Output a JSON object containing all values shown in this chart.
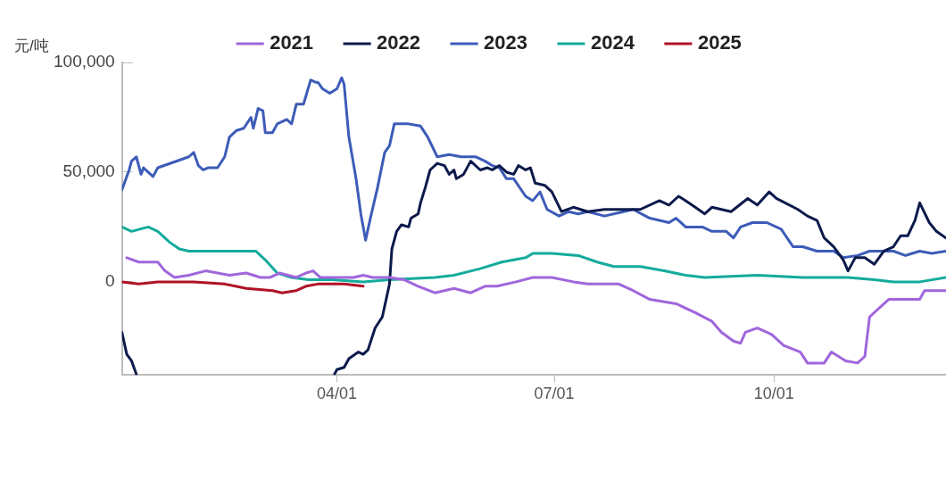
{
  "chart_data": {
    "type": "line",
    "ylabel": "元/吨",
    "legend": "top",
    "grid": false,
    "marker": "none",
    "line_style": "solid",
    "xlim": [
      "--01-01",
      "--12-12"
    ],
    "xticks": [
      {
        "value": "--04-01",
        "label": "04/01"
      },
      {
        "value": "--07-01",
        "label": "07/01"
      },
      {
        "value": "--10-01",
        "label": "10/01"
      }
    ],
    "ylim": [
      -42500,
      100000
    ],
    "yticks": [
      {
        "value": 0,
        "label": "0"
      },
      {
        "value": 50000,
        "label": "50,000"
      },
      {
        "value": 100000,
        "label": "100,000"
      }
    ],
    "series": [
      {
        "name": "2021",
        "color": "#a066dc",
        "x": [
          "--01-03",
          "--01-08",
          "--01-16",
          "--01-19",
          "--01-23",
          "--01-29",
          "--02-05",
          "--02-15",
          "--02-22",
          "--02-28",
          "--03-04",
          "--03-08",
          "--03-15",
          "--03-19",
          "--03-22",
          "--03-25",
          "--04-01",
          "--04-08",
          "--04-12",
          "--04-16",
          "--04-23",
          "--04-29",
          "--05-05",
          "--05-12",
          "--05-20",
          "--05-27",
          "--06-02",
          "--06-07",
          "--06-15",
          "--06-22",
          "--06-30",
          "--07-09",
          "--07-15",
          "--07-28",
          "--08-03",
          "--08-10",
          "--08-21",
          "--08-29",
          "--09-05",
          "--09-09",
          "--09-14",
          "--09-17",
          "--09-19",
          "--09-24",
          "--09-30",
          "--10-05",
          "--10-12",
          "--10-15",
          "--10-22",
          "--10-25",
          "--10-31",
          "--11-05",
          "--11-08",
          "--11-10",
          "--11-14",
          "--11-18",
          "--12-01",
          "--12-03",
          "--12-12"
        ],
        "values": [
          11000,
          9000,
          9000,
          5000,
          2000,
          3000,
          5000,
          3000,
          4000,
          2000,
          2000,
          4000,
          2000,
          4000,
          5000,
          2000,
          2000,
          2000,
          3000,
          2000,
          2000,
          1000,
          -2000,
          -5000,
          -3000,
          -5000,
          -2000,
          -2000,
          0,
          2000,
          2000,
          0,
          -1000,
          -1000,
          -4000,
          -8000,
          -10000,
          -14000,
          -18000,
          -23000,
          -27000,
          -28000,
          -23000,
          -21000,
          -24000,
          -29000,
          -32000,
          -37000,
          -37000,
          -32000,
          -36000,
          -37000,
          -34000,
          -16000,
          -12000,
          -8000,
          -8000,
          -4000,
          -4000
        ]
      },
      {
        "name": "2022",
        "color": "#0c1a4b",
        "x": [
          "--01-01",
          "--01-03",
          "--01-05",
          "--01-07",
          "--02-20",
          "--03-31",
          "--04-01",
          "--04-04",
          "--04-06",
          "--04-10",
          "--04-12",
          "--04-14",
          "--04-17",
          "--04-20",
          "--04-23",
          "--04-24",
          "--04-26",
          "--04-28",
          "--05-01",
          "--05-02",
          "--05-05",
          "--05-06",
          "--05-08",
          "--05-10",
          "--05-13",
          "--05-16",
          "--05-18",
          "--05-20",
          "--05-21",
          "--05-24",
          "--05-27",
          "--05-31",
          "--06-03",
          "--06-05",
          "--06-08",
          "--06-11",
          "--06-14",
          "--06-16",
          "--06-19",
          "--06-21",
          "--06-23",
          "--06-27",
          "--06-30",
          "--07-04",
          "--07-09",
          "--07-15",
          "--07-22",
          "--07-30",
          "--08-06",
          "--08-14",
          "--08-18",
          "--08-22",
          "--08-25",
          "--08-29",
          "--09-02",
          "--09-05",
          "--09-13",
          "--09-20",
          "--09-24",
          "--09-29",
          "--10-02",
          "--10-11",
          "--10-15",
          "--10-19",
          "--10-22",
          "--10-26",
          "--10-30",
          "--11-01",
          "--11-04",
          "--11-08",
          "--11-12",
          "--11-16",
          "--11-20",
          "--11-23",
          "--11-26",
          "--11-29",
          "--12-01",
          "--12-05",
          "--12-08",
          "--12-12"
        ],
        "values": [
          -23000,
          -33000,
          -36000,
          -42000,
          null,
          -42000,
          -40000,
          -39000,
          -35000,
          -32000,
          -33000,
          -31000,
          -21000,
          -16000,
          -1000,
          15000,
          23000,
          26000,
          25000,
          29000,
          31000,
          36000,
          43000,
          51000,
          54000,
          53000,
          49000,
          51000,
          47000,
          49000,
          55000,
          51000,
          52000,
          51000,
          53000,
          50000,
          49000,
          53000,
          51000,
          52000,
          45000,
          44000,
          41000,
          32000,
          34000,
          32000,
          33000,
          33000,
          33000,
          37000,
          35000,
          39000,
          37000,
          34000,
          31000,
          34000,
          32000,
          38000,
          35000,
          41000,
          38000,
          33000,
          30000,
          28000,
          20000,
          16000,
          10000,
          5000,
          11000,
          11000,
          8000,
          14000,
          16000,
          21000,
          21000,
          28000,
          36000,
          27000,
          23000,
          20000
        ]
      },
      {
        "name": "2023",
        "color": "#3d5cb8",
        "x": [
          "--01-01",
          "--01-04",
          "--01-05",
          "--01-07",
          "--01-09",
          "--01-10",
          "--01-14",
          "--01-16",
          "--01-29",
          "--01-31",
          "--02-02",
          "--02-04",
          "--02-06",
          "--02-10",
          "--02-13",
          "--02-15",
          "--02-18",
          "--02-21",
          "--02-24",
          "--02-25",
          "--02-27",
          "--03-01",
          "--03-02",
          "--03-05",
          "--03-07",
          "--03-11",
          "--03-13",
          "--03-15",
          "--03-18",
          "--03-21",
          "--03-23",
          "--03-24",
          "--03-26",
          "--03-29",
          "--04-01",
          "--04-03",
          "--04-04",
          "--04-06",
          "--04-09",
          "--04-11",
          "--04-13",
          "--04-15",
          "--04-18",
          "--04-21",
          "--04-23",
          "--04-25",
          "--05-01",
          "--05-06",
          "--05-09",
          "--05-13",
          "--05-18",
          "--05-23",
          "--05-29",
          "--06-02",
          "--06-05",
          "--06-08",
          "--06-11",
          "--06-14",
          "--06-19",
          "--06-22",
          "--06-25",
          "--06-28",
          "--07-03",
          "--07-07",
          "--07-11",
          "--07-15",
          "--07-22",
          "--07-30",
          "--08-03",
          "--08-10",
          "--08-18",
          "--08-21",
          "--08-25",
          "--09-01",
          "--09-05",
          "--09-11",
          "--09-14",
          "--09-17",
          "--09-22",
          "--09-28",
          "--10-04",
          "--10-09",
          "--10-13",
          "--10-19",
          "--10-26",
          "--10-30",
          "--11-05",
          "--11-10",
          "--11-18",
          "--11-20",
          "--11-25",
          "--12-01",
          "--12-06",
          "--12-12"
        ],
        "values": [
          42000,
          51000,
          55000,
          57000,
          49000,
          52000,
          48000,
          52000,
          57000,
          59000,
          53000,
          51000,
          52000,
          52000,
          57000,
          66000,
          69000,
          70000,
          75000,
          70000,
          79000,
          78000,
          68000,
          68000,
          72000,
          74000,
          72000,
          81000,
          81000,
          92000,
          91000,
          91000,
          88000,
          86000,
          88000,
          93000,
          90000,
          66000,
          47000,
          31000,
          19000,
          29000,
          43000,
          59000,
          62000,
          72000,
          72000,
          71000,
          66000,
          57000,
          58000,
          57000,
          57000,
          55000,
          53000,
          52000,
          47000,
          47000,
          39000,
          37000,
          41000,
          33000,
          30000,
          32000,
          31000,
          32000,
          30000,
          32000,
          33000,
          29000,
          27000,
          29000,
          25000,
          25000,
          23000,
          23000,
          20000,
          25000,
          27000,
          27000,
          24000,
          16000,
          16000,
          14000,
          14000,
          11000,
          12000,
          14000,
          14000,
          14000,
          12000,
          14000,
          13000,
          14000
        ]
      },
      {
        "name": "2024",
        "color": "#14ab9c",
        "x": [
          "--01-01",
          "--01-05",
          "--01-12",
          "--01-16",
          "--01-21",
          "--01-25",
          "--01-29",
          "--02-11",
          "--02-26",
          "--03-02",
          "--03-07",
          "--03-13",
          "--03-20",
          "--03-30",
          "--04-12",
          "--04-23",
          "--05-12",
          "--05-20",
          "--05-31",
          "--06-09",
          "--06-19",
          "--06-22",
          "--06-30",
          "--07-11",
          "--07-19",
          "--07-26",
          "--08-06",
          "--08-16",
          "--08-25",
          "--09-02",
          "--09-24",
          "--10-13",
          "--11-01",
          "--11-12",
          "--11-20",
          "--12-01",
          "--12-12"
        ],
        "values": [
          25000,
          23000,
          25000,
          23000,
          18000,
          15000,
          14000,
          14000,
          14000,
          10000,
          4000,
          2000,
          1000,
          1000,
          0,
          1000,
          2000,
          3000,
          6000,
          9000,
          11000,
          13000,
          13000,
          12000,
          9000,
          7000,
          7000,
          5000,
          3000,
          2000,
          3000,
          2000,
          2000,
          1000,
          0,
          0,
          2000
        ]
      },
      {
        "name": "2025",
        "color": "#b01226",
        "x": [
          "--01-01",
          "--01-08",
          "--01-16",
          "--01-31",
          "--02-13",
          "--02-22",
          "--03-05",
          "--03-09",
          "--03-15",
          "--03-19",
          "--03-24",
          "--04-04",
          "--04-12"
        ],
        "values": [
          0,
          -1000,
          0,
          0,
          -1000,
          -3000,
          -4000,
          -5000,
          -4000,
          -2000,
          -1000,
          -1000,
          -2000
        ]
      }
    ]
  }
}
